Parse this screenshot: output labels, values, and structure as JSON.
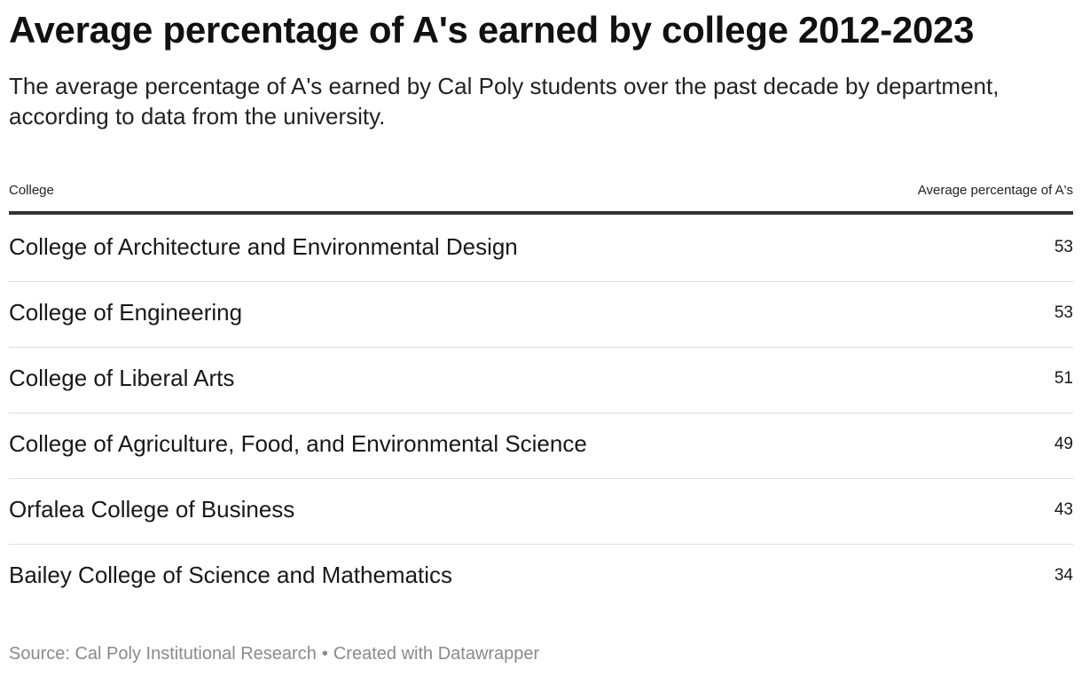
{
  "header": {
    "title": "Average percentage of A's earned by college 2012-2023",
    "subtitle": "The average percentage of A's earned by Cal Poly students over the past decade by department, according to data from the university."
  },
  "table": {
    "columns": [
      "College",
      "Average percentage of A's"
    ],
    "rows": [
      {
        "college": "College of Architecture and Environmental Design",
        "value": "53"
      },
      {
        "college": "College of Engineering",
        "value": "53"
      },
      {
        "college": "College of Liberal Arts",
        "value": "51"
      },
      {
        "college": "College of Agriculture, Food, and Environmental Science",
        "value": "49"
      },
      {
        "college": "Orfalea College of Business",
        "value": "43"
      },
      {
        "college": "Bailey College of Science and Mathematics",
        "value": "34"
      }
    ]
  },
  "footer": {
    "source": "Source: Cal Poly Institutional Research",
    "separator": "•",
    "credit": "Created with Datawrapper"
  },
  "colors": {
    "header_rule": "#333333",
    "row_divider": "#dedede",
    "footer_text": "#8a8a8a"
  },
  "chart_data": {
    "type": "table",
    "title": "Average percentage of A's earned by college 2012-2023",
    "subtitle": "The average percentage of A's earned by Cal Poly students over the past decade by department, according to data from the university.",
    "columns": [
      "College",
      "Average percentage of A's"
    ],
    "categories": [
      "College of Architecture and Environmental Design",
      "College of Engineering",
      "College of Liberal Arts",
      "College of Agriculture, Food, and Environmental Science",
      "Orfalea College of Business",
      "Bailey College of Science and Mathematics"
    ],
    "values": [
      53,
      53,
      51,
      49,
      43,
      34
    ],
    "source": "Cal Poly Institutional Research"
  }
}
